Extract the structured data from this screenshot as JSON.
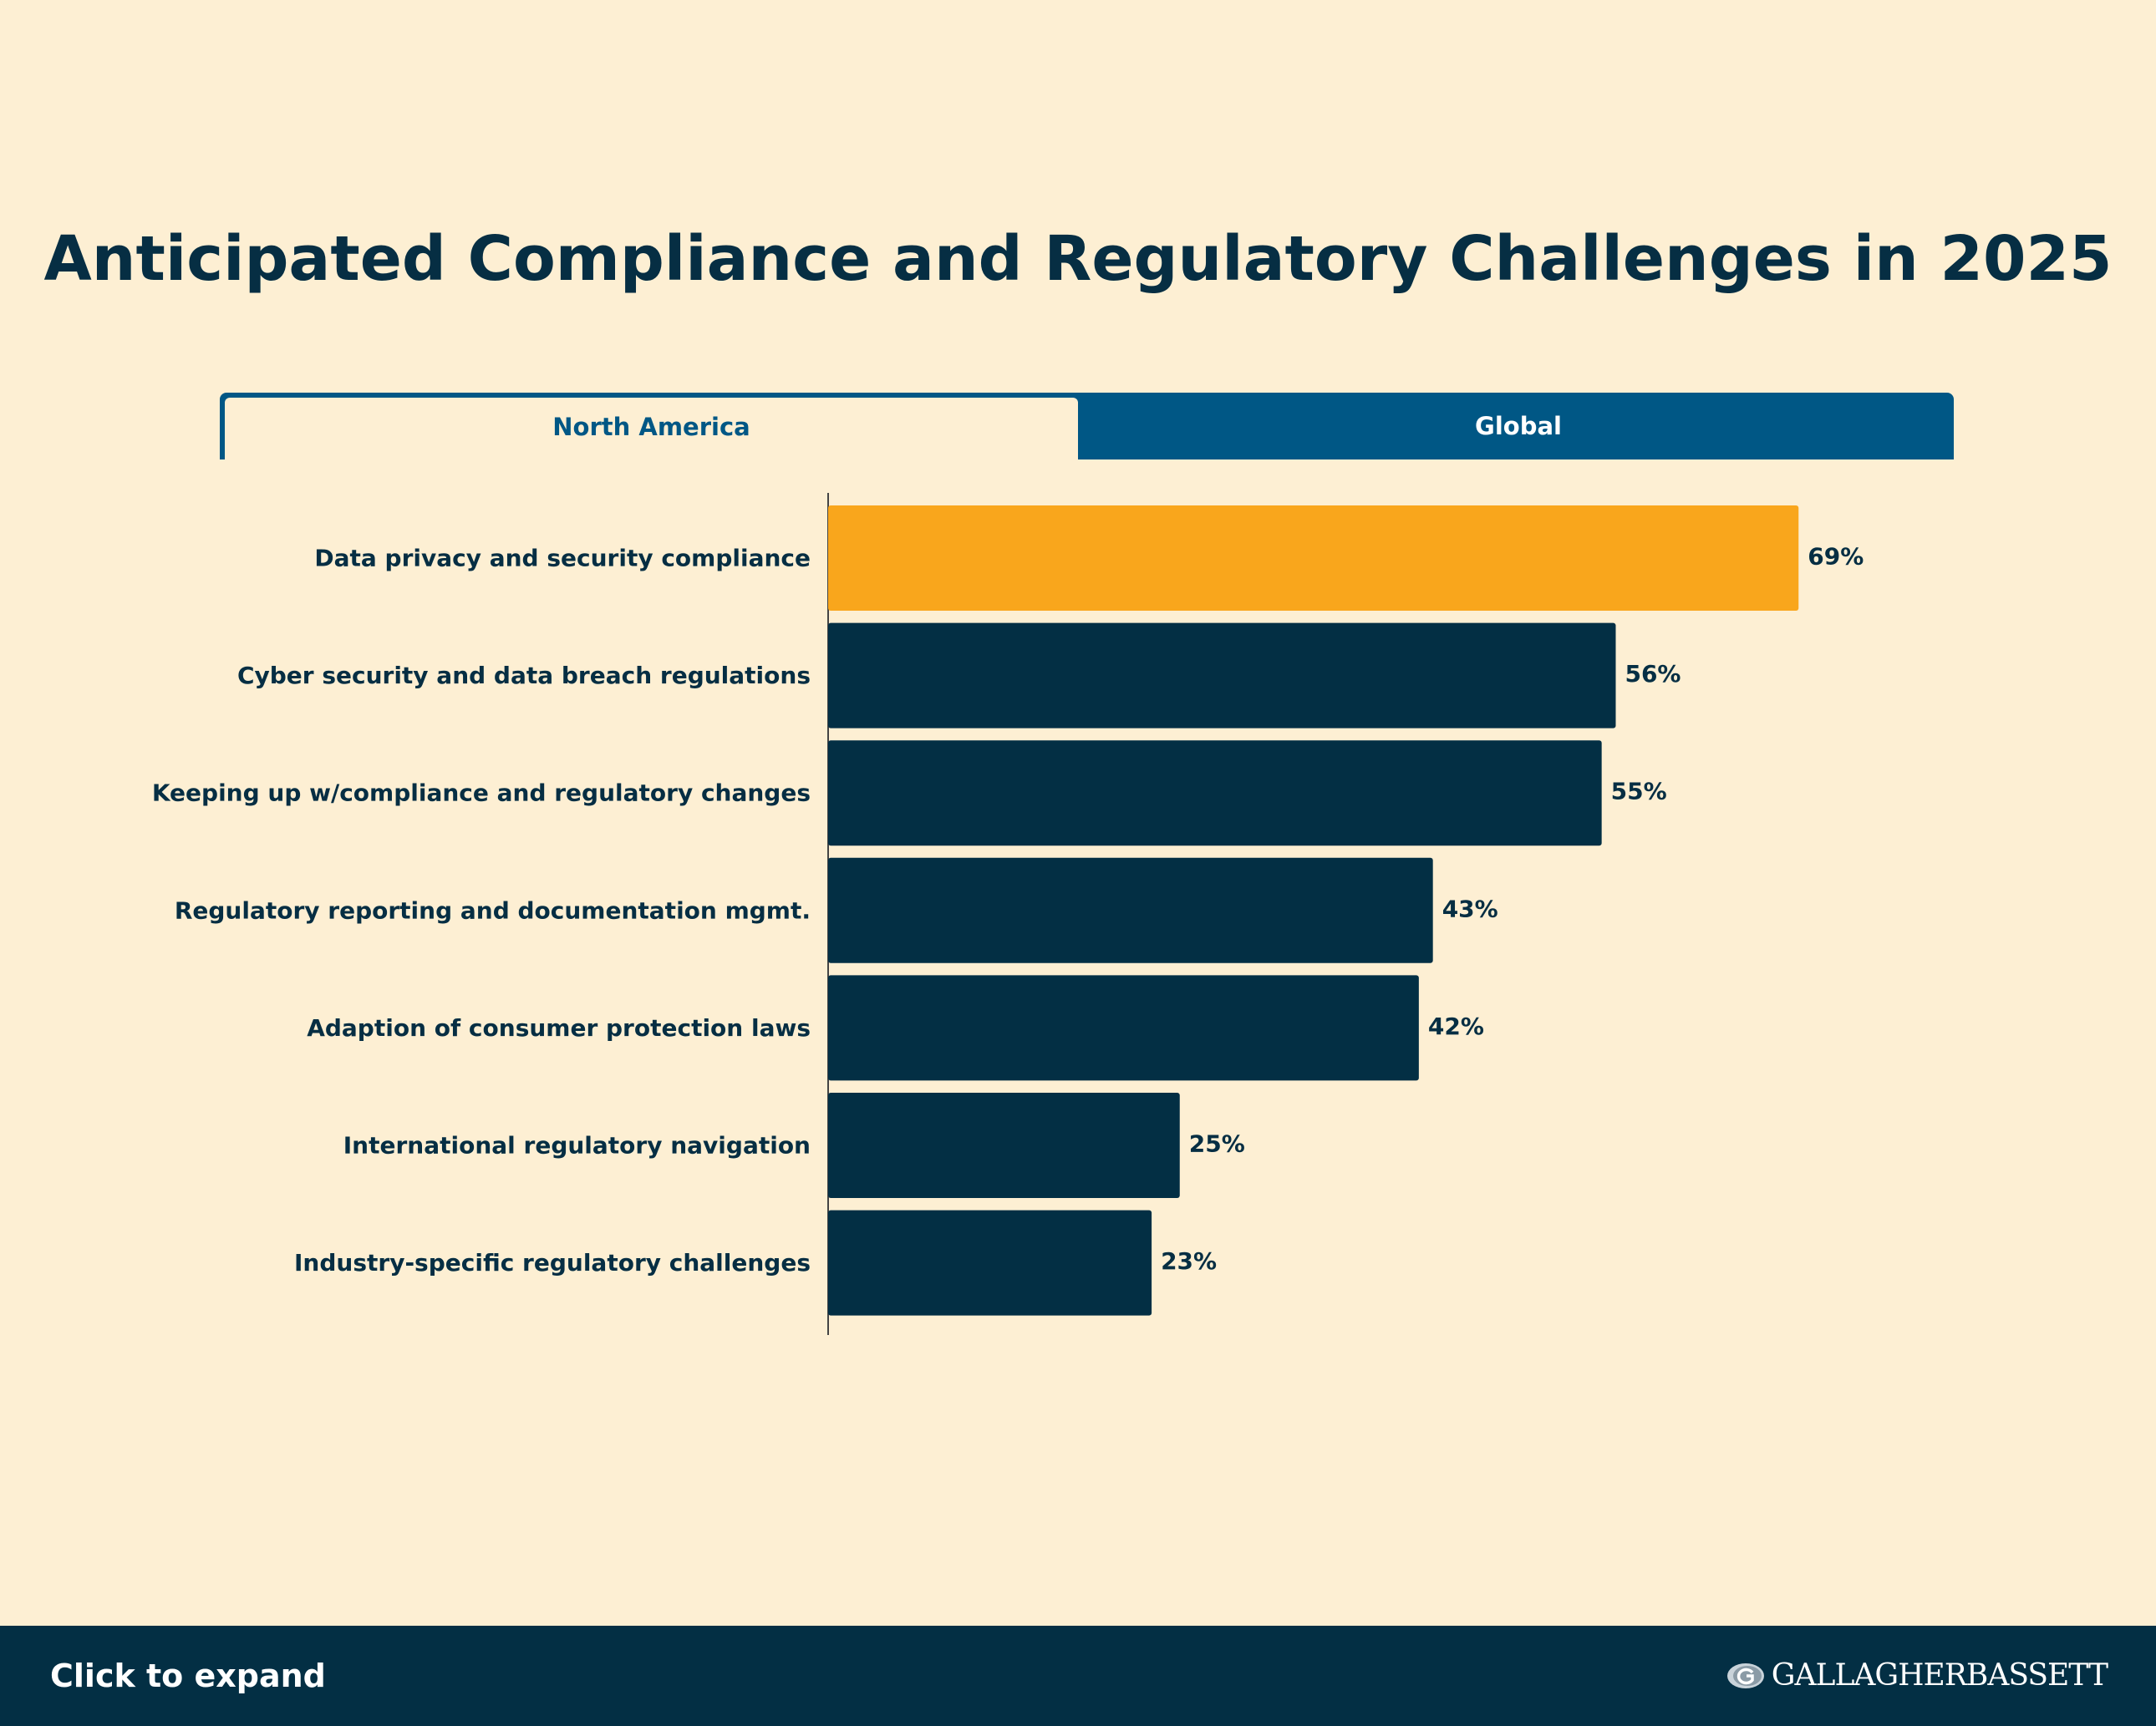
{
  "title": "Anticipated Compliance and Regulatory Challenges in 2025",
  "tabs": [
    {
      "label": "North America",
      "active": true
    },
    {
      "label": "Global",
      "active": false
    }
  ],
  "footer": {
    "expand_label": "Click to expand",
    "logo_text": "GALLAGHERBASSETT",
    "logo_icon": "globe-g-icon"
  },
  "colors": {
    "background": "#fdefd3",
    "highlight": "#f9a61c",
    "bar": "#032f44",
    "tab": "#005785"
  },
  "chart_data": {
    "type": "bar",
    "orientation": "horizontal",
    "title": "Anticipated Compliance and Regulatory Challenges in 2025",
    "categories": [
      "Data privacy and security compliance",
      "Cyber security and data breach regulations",
      "Keeping up w/compliance and regulatory changes",
      "Regulatory reporting and documentation mgmt.",
      "Adaption of consumer protection laws",
      "International regulatory navigation",
      "Industry-specific regulatory challenges"
    ],
    "values": [
      69,
      56,
      55,
      43,
      42,
      25,
      23
    ],
    "value_labels": [
      "69%",
      "56%",
      "55%",
      "43%",
      "42%",
      "25%",
      "23%"
    ],
    "highlight_index": 0,
    "unit": "%",
    "xlim": [
      0,
      100
    ],
    "grid": false
  }
}
